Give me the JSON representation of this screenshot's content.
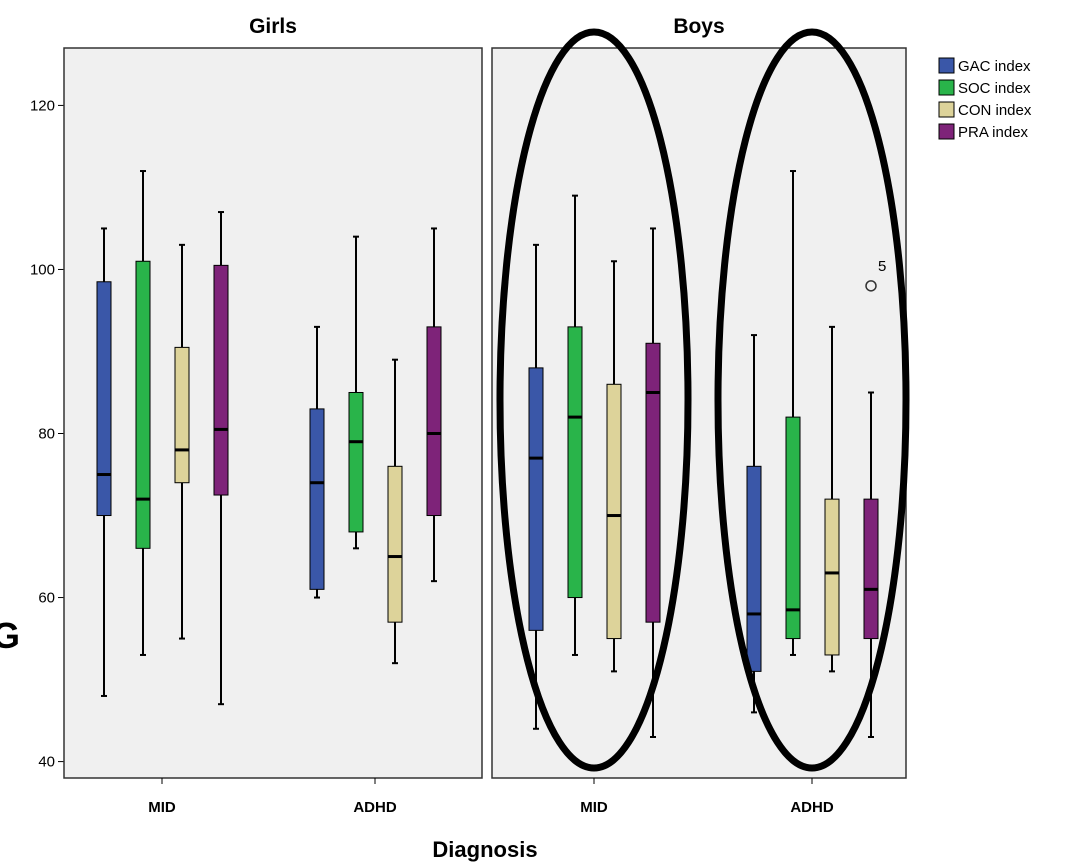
{
  "chart_data": {
    "type": "box",
    "xlabel": "Diagnosis",
    "ylabel": "",
    "ylim": [
      38,
      127
    ],
    "yticks": [
      40,
      60,
      80,
      100,
      120
    ],
    "categories": [
      "MID",
      "ADHD"
    ],
    "legend": {
      "placement": "top-right",
      "entries": [
        {
          "name": "GAC index",
          "color": "#3A57A8"
        },
        {
          "name": "SOC index",
          "color": "#29B44A"
        },
        {
          "name": "CON index",
          "color": "#DDD39A"
        },
        {
          "name": "PRA index",
          "color": "#7E2379"
        }
      ]
    },
    "panels": [
      {
        "title": "Girls",
        "groups": [
          {
            "category": "MID",
            "boxes": [
              {
                "series": "GAC index",
                "min": 48,
                "q1": 70,
                "median": 75,
                "q3": 98.5,
                "max": 105
              },
              {
                "series": "SOC index",
                "min": 53,
                "q1": 66,
                "median": 72,
                "q3": 101,
                "max": 112
              },
              {
                "series": "CON index",
                "min": 55,
                "q1": 74,
                "median": 78,
                "q3": 90.5,
                "max": 103
              },
              {
                "series": "PRA index",
                "min": 47,
                "q1": 72.5,
                "median": 80.5,
                "q3": 100.5,
                "max": 107
              }
            ]
          },
          {
            "category": "ADHD",
            "boxes": [
              {
                "series": "GAC index",
                "min": 60,
                "q1": 61,
                "median": 74,
                "q3": 83,
                "max": 93
              },
              {
                "series": "SOC index",
                "min": 66,
                "q1": 68,
                "median": 79,
                "q3": 85,
                "max": 104
              },
              {
                "series": "CON index",
                "min": 52,
                "q1": 57,
                "median": 65,
                "q3": 76,
                "max": 89
              },
              {
                "series": "PRA index",
                "min": 62,
                "q1": 70,
                "median": 80,
                "q3": 93,
                "max": 105
              }
            ]
          }
        ]
      },
      {
        "title": "Boys",
        "groups": [
          {
            "category": "MID",
            "boxes": [
              {
                "series": "GAC index",
                "min": 44,
                "q1": 56,
                "median": 77,
                "q3": 88,
                "max": 103
              },
              {
                "series": "SOC index",
                "min": 53,
                "q1": 60,
                "median": 82,
                "q3": 93,
                "max": 109
              },
              {
                "series": "CON index",
                "min": 51,
                "q1": 55,
                "median": 70,
                "q3": 86,
                "max": 101
              },
              {
                "series": "PRA index",
                "min": 43,
                "q1": 57,
                "median": 85,
                "q3": 91,
                "max": 105
              }
            ]
          },
          {
            "category": "ADHD",
            "boxes": [
              {
                "series": "GAC index",
                "min": 46,
                "q1": 51,
                "median": 58,
                "q3": 76,
                "max": 92
              },
              {
                "series": "SOC index",
                "min": 53,
                "q1": 55,
                "median": 58.5,
                "q3": 82,
                "max": 112
              },
              {
                "series": "CON index",
                "min": 51,
                "q1": 53,
                "median": 63,
                "q3": 72,
                "max": 93
              },
              {
                "series": "PRA index",
                "min": 43,
                "q1": 55,
                "median": 61,
                "q3": 72,
                "max": 85,
                "outliers": [
                  {
                    "value": 98,
                    "label": "5"
                  }
                ]
              }
            ]
          }
        ]
      }
    ],
    "highlight_ellipses": [
      {
        "panel": "Boys",
        "category": "MID"
      },
      {
        "panel": "Boys",
        "category": "ADHD"
      }
    ],
    "grid": false,
    "panel_background": "#F0F0F0",
    "edge_glyph": "G"
  }
}
